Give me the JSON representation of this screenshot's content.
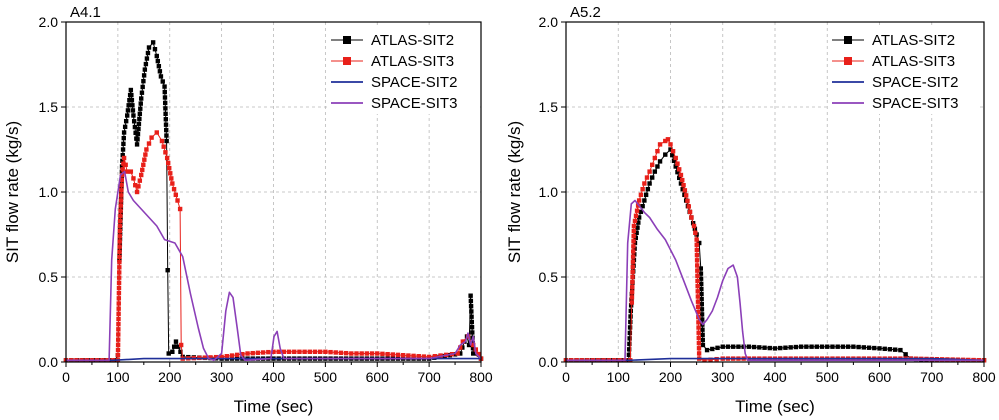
{
  "colors": {
    "atlas_sit2": "#000000",
    "atlas_sit3": "#e8201a",
    "space_sit2": "#1f2f99",
    "space_sit3": "#8b3fb8",
    "grid": "#b8b8b8"
  },
  "legend": [
    "ATLAS-SIT2",
    "ATLAS-SIT3",
    "SPACE-SIT2",
    "SPACE-SIT3"
  ],
  "chart_data": [
    {
      "type": "line",
      "title": "A4.1",
      "xlabel": "Time (sec)",
      "ylabel": "SIT flow rate (kg/s)",
      "xlim": [
        0,
        800
      ],
      "ylim": [
        0,
        2.0
      ],
      "xticks": [
        0,
        100,
        200,
        300,
        400,
        500,
        600,
        700,
        800
      ],
      "yticks": [
        0.0,
        0.5,
        1.0,
        1.5,
        2.0
      ],
      "xtick_labels": [
        "0",
        "100",
        "200",
        "300",
        "400",
        "500",
        "600",
        "700",
        "800"
      ],
      "ytick_labels": [
        "0.0",
        "0.5",
        "1.0",
        "1.5",
        "2.0"
      ],
      "grid": true,
      "legend_position": "top-right",
      "series": [
        {
          "name": "ATLAS-SIT2",
          "marker": "square",
          "x": [
            0,
            95,
            100,
            103,
            108,
            112,
            118,
            125,
            130,
            137,
            145,
            152,
            160,
            168,
            175,
            183,
            190,
            194,
            196,
            198,
            205,
            212,
            225,
            300,
            400,
            500,
            600,
            700,
            760,
            768,
            773,
            777,
            780,
            785,
            800
          ],
          "y": [
            0.01,
            0.01,
            0.04,
            0.6,
            1.15,
            1.35,
            1.45,
            1.6,
            1.45,
            1.28,
            1.55,
            1.72,
            1.85,
            1.88,
            1.8,
            1.68,
            1.62,
            1.3,
            0.54,
            0.05,
            0.06,
            0.12,
            0.03,
            0.02,
            0.02,
            0.02,
            0.02,
            0.02,
            0.05,
            0.12,
            0.15,
            0.1,
            0.39,
            0.05,
            0.02
          ]
        },
        {
          "name": "ATLAS-SIT3",
          "marker": "square",
          "x": [
            0,
            100,
            104,
            108,
            112,
            118,
            125,
            130,
            137,
            145,
            155,
            165,
            175,
            185,
            195,
            205,
            215,
            220,
            222,
            225,
            300,
            350,
            400,
            450,
            500,
            550,
            600,
            650,
            700,
            755,
            765,
            775,
            785,
            800
          ],
          "y": [
            0.01,
            0.01,
            0.8,
            1.1,
            1.2,
            1.12,
            1.12,
            1.08,
            1.0,
            1.1,
            1.25,
            1.32,
            1.35,
            1.3,
            1.2,
            1.05,
            0.95,
            0.9,
            0.1,
            0.02,
            0.03,
            0.05,
            0.06,
            0.06,
            0.06,
            0.05,
            0.05,
            0.04,
            0.03,
            0.05,
            0.12,
            0.15,
            0.1,
            0.02
          ]
        },
        {
          "name": "SPACE-SIT2",
          "marker": "none",
          "x": [
            0,
            90,
            150,
            220,
            350,
            500,
            650,
            800
          ],
          "y": [
            0.01,
            0.01,
            0.02,
            0.02,
            0.02,
            0.02,
            0.02,
            0.02
          ]
        },
        {
          "name": "SPACE-SIT3",
          "marker": "none",
          "x": [
            0,
            83,
            88,
            95,
            105,
            113,
            120,
            130,
            145,
            160,
            175,
            190,
            210,
            225,
            240,
            255,
            265,
            275,
            285,
            300,
            308,
            315,
            322,
            330,
            337,
            345,
            395,
            401,
            407,
            413,
            420,
            700,
            750,
            760,
            770,
            775,
            780,
            785,
            790,
            800
          ],
          "y": [
            0.01,
            0.01,
            0.6,
            0.9,
            1.1,
            1.12,
            1.0,
            0.95,
            0.9,
            0.85,
            0.8,
            0.72,
            0.7,
            0.62,
            0.4,
            0.2,
            0.08,
            0.02,
            0.01,
            0.05,
            0.3,
            0.41,
            0.38,
            0.2,
            0.04,
            0.01,
            0.02,
            0.15,
            0.18,
            0.08,
            0.02,
            0.02,
            0.05,
            0.1,
            0.12,
            0.17,
            0.1,
            0.15,
            0.05,
            0.02
          ]
        }
      ]
    },
    {
      "type": "line",
      "title": "A5.2",
      "xlabel": "Time (sec)",
      "ylabel": "SIT flow rate (kg/s)",
      "xlim": [
        0,
        800
      ],
      "ylim": [
        0,
        2.0
      ],
      "xticks": [
        0,
        100,
        200,
        300,
        400,
        500,
        600,
        700,
        800
      ],
      "yticks": [
        0.0,
        0.5,
        1.0,
        1.5,
        2.0
      ],
      "xtick_labels": [
        "0",
        "100",
        "200",
        "300",
        "400",
        "500",
        "600",
        "700",
        "800"
      ],
      "ytick_labels": [
        "0.0",
        "0.5",
        "1.0",
        "1.5",
        "2.0"
      ],
      "grid": true,
      "legend_position": "top-right",
      "series": [
        {
          "name": "ATLAS-SIT2",
          "marker": "square",
          "x": [
            0,
            120,
            124,
            128,
            132,
            140,
            150,
            160,
            170,
            180,
            190,
            200,
            210,
            220,
            230,
            240,
            250,
            255,
            258,
            262,
            270,
            300,
            350,
            400,
            450,
            500,
            550,
            600,
            640,
            660,
            700,
            800
          ],
          "y": [
            0.01,
            0.01,
            0.3,
            0.5,
            0.7,
            0.85,
            0.95,
            1.05,
            1.12,
            1.18,
            1.22,
            1.25,
            1.15,
            1.05,
            0.95,
            0.85,
            0.75,
            0.7,
            0.55,
            0.1,
            0.07,
            0.09,
            0.09,
            0.08,
            0.09,
            0.09,
            0.09,
            0.08,
            0.07,
            0.02,
            0.01,
            0.01
          ]
        },
        {
          "name": "ATLAS-SIT3",
          "marker": "square",
          "x": [
            0,
            123,
            126,
            130,
            140,
            150,
            160,
            170,
            180,
            190,
            195,
            200,
            210,
            220,
            230,
            240,
            245,
            250,
            255,
            265,
            300,
            400,
            500,
            600,
            640,
            660,
            800
          ],
          "y": [
            0.01,
            0.01,
            0.35,
            0.8,
            0.95,
            1.05,
            1.12,
            1.2,
            1.28,
            1.3,
            1.31,
            1.28,
            1.2,
            1.1,
            0.98,
            0.85,
            0.8,
            0.72,
            0.02,
            0.01,
            0.02,
            0.02,
            0.02,
            0.02,
            0.02,
            0.02,
            0.01
          ]
        },
        {
          "name": "SPACE-SIT2",
          "marker": "none",
          "x": [
            0,
            120,
            200,
            300,
            400,
            500,
            600,
            700,
            800
          ],
          "y": [
            0.01,
            0.01,
            0.02,
            0.02,
            0.02,
            0.02,
            0.02,
            0.02,
            0.01
          ]
        },
        {
          "name": "SPACE-SIT3",
          "marker": "none",
          "x": [
            0,
            113,
            118,
            125,
            132,
            140,
            150,
            160,
            175,
            190,
            210,
            225,
            240,
            255,
            262,
            270,
            280,
            290,
            300,
            310,
            320,
            328,
            333,
            338,
            343,
            348,
            360,
            800
          ],
          "y": [
            0.01,
            0.01,
            0.7,
            0.93,
            0.95,
            0.92,
            0.88,
            0.85,
            0.78,
            0.72,
            0.6,
            0.48,
            0.36,
            0.25,
            0.22,
            0.25,
            0.3,
            0.38,
            0.48,
            0.55,
            0.57,
            0.5,
            0.35,
            0.18,
            0.05,
            0.01,
            0.01,
            0.01
          ]
        }
      ]
    }
  ]
}
